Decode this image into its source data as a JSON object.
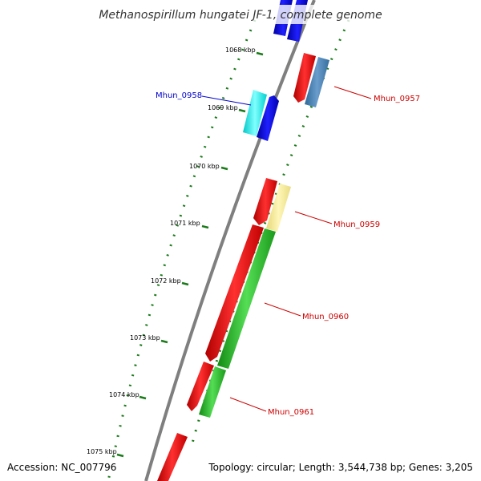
{
  "title": "Methanospirillum hungatei JF-1, complete genome",
  "footer": {
    "accession": "Accession: NC_007796",
    "topology": "Topology: circular; Length: 3,544,738 bp; Genes: 3,205"
  },
  "ticks": [
    "1068 kbp",
    "1069 kbp",
    "1070 kbp",
    "1071 kbp",
    "1072 kbp",
    "1073 kbp",
    "1074 kbp",
    "1075 kbp"
  ],
  "gene_labels": [
    {
      "text": "Mhun_0958",
      "color": "#0000cc"
    },
    {
      "text": "Mhun_0957",
      "color": "#cc0000"
    },
    {
      "text": "Mhun_0959",
      "color": "#cc0000"
    },
    {
      "text": "Mhun_0960",
      "color": "#cc0000"
    },
    {
      "text": "Mhun_0961",
      "color": "#cc0000"
    }
  ],
  "colors": {
    "backbone": "#808080",
    "tick": "#1a7a1a",
    "red": "#ff0000",
    "blue": "#0000ee",
    "cyan": "#00ffff",
    "steelblue": "#4682b4",
    "khaki": "#f0e68c",
    "green": "#22aa22"
  }
}
